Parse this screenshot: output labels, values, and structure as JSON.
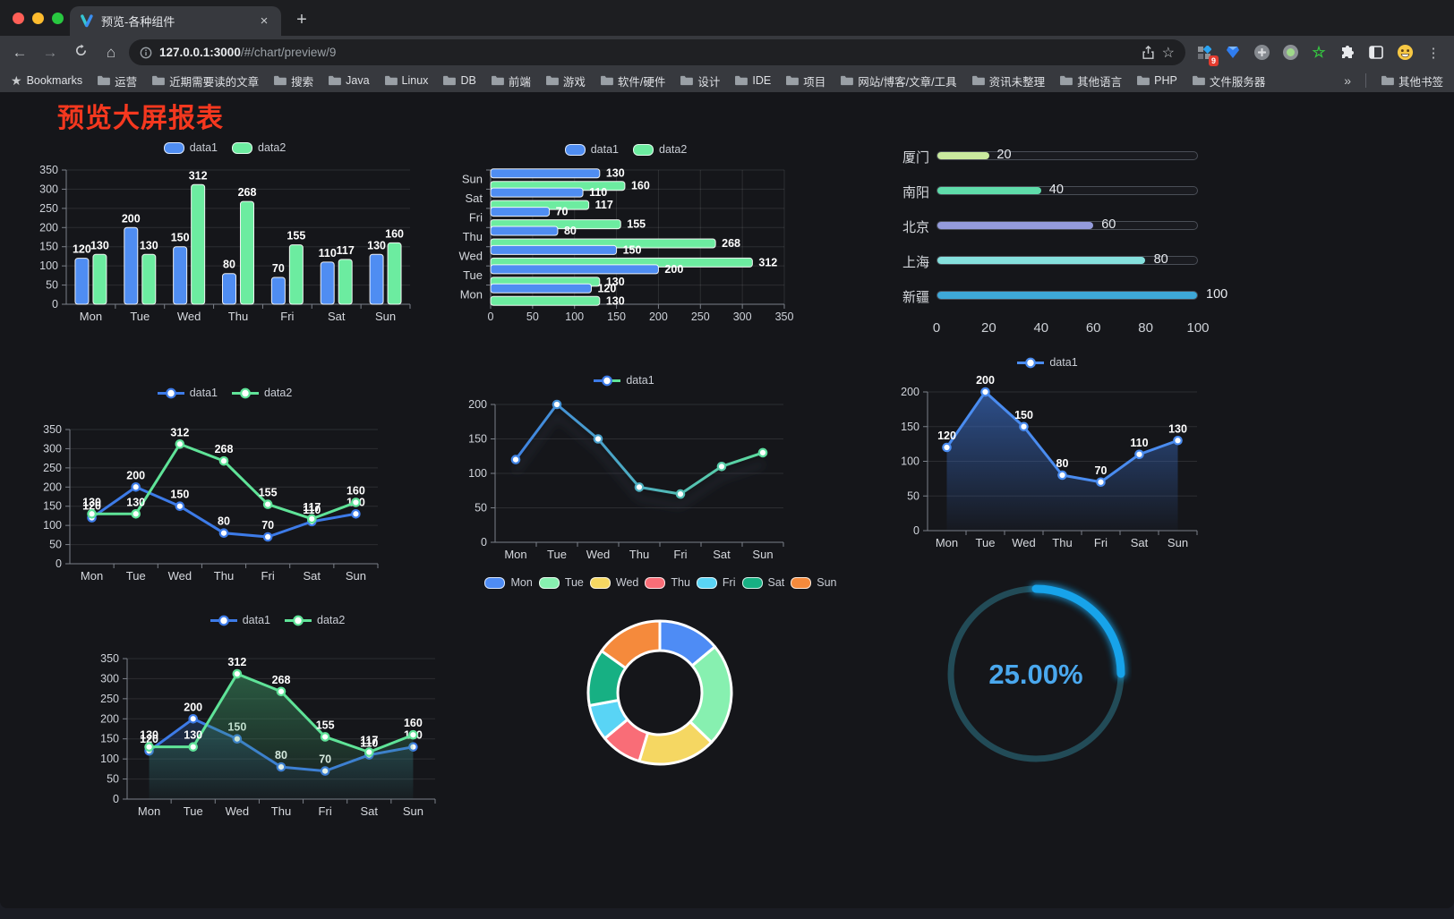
{
  "browser": {
    "tab_title": "预览-各种组件",
    "close_label": "×",
    "new_tab_label": "+",
    "url_host": "127.0.0.1:3000",
    "url_path": "/#/chart/preview/9",
    "extension_badge": "9"
  },
  "bookmarks": {
    "root_label": "Bookmarks",
    "folders": [
      "运营",
      "近期需要读的文章",
      "搜索",
      "Java",
      "Linux",
      "DB",
      "前端",
      "游戏",
      "软件/硬件",
      "设计",
      "IDE",
      "项目",
      "网站/博客/文章/工具",
      "资讯未整理",
      "其他语言",
      "PHP",
      "文件服务器"
    ],
    "overflow_label": "»",
    "other_label": "其他书签"
  },
  "page": {
    "title": "预览大屏报表"
  },
  "chart_data": [
    {
      "id": "bar-vertical",
      "type": "bar",
      "categories": [
        "Mon",
        "Tue",
        "Wed",
        "Thu",
        "Fri",
        "Sat",
        "Sun"
      ],
      "series": [
        {
          "name": "data1",
          "color": "#4f8df2",
          "values": [
            120,
            200,
            150,
            80,
            70,
            110,
            130
          ]
        },
        {
          "name": "data2",
          "color": "#6cecA0",
          "values": [
            130,
            130,
            312,
            268,
            155,
            117,
            160
          ]
        }
      ],
      "ylim": [
        0,
        350
      ],
      "yticks": [
        0,
        50,
        100,
        150,
        200,
        250,
        300,
        350
      ],
      "legend_position": "top",
      "grid": true,
      "value_labels": true
    },
    {
      "id": "bar-horizontal",
      "type": "bar-horizontal",
      "categories": [
        "Mon",
        "Tue",
        "Wed",
        "Thu",
        "Fri",
        "Sat",
        "Sun"
      ],
      "series": [
        {
          "name": "data1",
          "color": "#4f8df2",
          "values": [
            120,
            200,
            150,
            80,
            70,
            110,
            130
          ]
        },
        {
          "name": "data2",
          "color": "#6cecA0",
          "values": [
            130,
            130,
            312,
            268,
            155,
            117,
            160
          ]
        }
      ],
      "xlim": [
        0,
        350
      ],
      "xticks": [
        0,
        50,
        100,
        150,
        200,
        250,
        300,
        350
      ],
      "legend_position": "top",
      "grid": true,
      "value_labels": true
    },
    {
      "id": "city-progress",
      "type": "progress",
      "max": 100,
      "xticks": [
        0,
        20,
        40,
        60,
        80,
        100
      ],
      "items": [
        {
          "label": "厦门",
          "value": 20,
          "color": "#c9e99e"
        },
        {
          "label": "南阳",
          "value": 40,
          "color": "#5fdcaa"
        },
        {
          "label": "北京",
          "value": 60,
          "color": "#949bdc"
        },
        {
          "label": "上海",
          "value": 80,
          "color": "#85e0dd"
        },
        {
          "label": "新疆",
          "value": 100,
          "color": "#3ea8d8"
        }
      ]
    },
    {
      "id": "line-two",
      "type": "line",
      "categories": [
        "Mon",
        "Tue",
        "Wed",
        "Thu",
        "Fri",
        "Sat",
        "Sun"
      ],
      "series": [
        {
          "name": "data1",
          "color": "#3d7be8",
          "values": [
            120,
            200,
            150,
            80,
            70,
            110,
            130
          ]
        },
        {
          "name": "data2",
          "color": "#5fe398",
          "values": [
            130,
            130,
            312,
            268,
            155,
            117,
            160
          ]
        }
      ],
      "ylim": [
        0,
        350
      ],
      "yticks": [
        0,
        50,
        100,
        150,
        200,
        250,
        300,
        350
      ],
      "legend_position": "top",
      "grid": true,
      "value_labels": true
    },
    {
      "id": "line-gradient",
      "type": "line",
      "shadow": true,
      "categories": [
        "Mon",
        "Tue",
        "Wed",
        "Thu",
        "Fri",
        "Sat",
        "Sun"
      ],
      "series": [
        {
          "name": "data1",
          "color_gradient": [
            "#3d7be8",
            "#5fe398"
          ],
          "values": [
            120,
            200,
            150,
            80,
            70,
            110,
            130
          ]
        }
      ],
      "ylim": [
        0,
        200
      ],
      "yticks": [
        0,
        50,
        100,
        150,
        200
      ],
      "legend_position": "top",
      "grid": true,
      "value_labels": false
    },
    {
      "id": "area-single",
      "type": "line",
      "categories": [
        "Mon",
        "Tue",
        "Wed",
        "Thu",
        "Fri",
        "Sat",
        "Sun"
      ],
      "series": [
        {
          "name": "data1",
          "color": "#4a8cf0",
          "values": [
            120,
            200,
            150,
            80,
            70,
            110,
            130
          ],
          "area": true,
          "area_from": "rgba(58,110,200,0.65)",
          "area_to": "rgba(58,110,200,0.03)"
        }
      ],
      "ylim": [
        0,
        200
      ],
      "yticks": [
        0,
        50,
        100,
        150,
        200
      ],
      "legend_position": "top",
      "grid": true,
      "value_labels": true
    },
    {
      "id": "area-two",
      "type": "line",
      "categories": [
        "Mon",
        "Tue",
        "Wed",
        "Thu",
        "Fri",
        "Sat",
        "Sun"
      ],
      "series": [
        {
          "name": "data1",
          "color": "#3d7be8",
          "values": [
            120,
            200,
            150,
            80,
            70,
            110,
            130
          ],
          "area": true,
          "area_from": "rgba(47,95,170,0.55)",
          "area_to": "rgba(47,95,170,0.03)"
        },
        {
          "name": "data2",
          "color": "#5fe398",
          "values": [
            130,
            130,
            312,
            268,
            155,
            117,
            160
          ],
          "area": true,
          "area_from": "rgba(60,150,100,0.6)",
          "area_to": "rgba(60,150,100,0.04)"
        }
      ],
      "ylim": [
        0,
        350
      ],
      "yticks": [
        0,
        50,
        100,
        150,
        200,
        250,
        300,
        350
      ],
      "legend_position": "top",
      "grid": true,
      "value_labels": true
    },
    {
      "id": "donut",
      "type": "pie",
      "categories": [
        "Mon",
        "Tue",
        "Wed",
        "Thu",
        "Fri",
        "Sat",
        "Sun"
      ],
      "values": [
        120,
        200,
        150,
        80,
        70,
        110,
        130
      ],
      "colors": [
        "#4e8cf5",
        "#87f0b0",
        "#f5d762",
        "#f96d77",
        "#59d4f5",
        "#17b083",
        "#f58a3c"
      ],
      "legend_position": "top"
    },
    {
      "id": "gauge",
      "type": "gauge",
      "value": 25,
      "label": "25.00%",
      "track_color": "#224b57",
      "arc_color": "#17a3ea",
      "text_color": "#4aa8ee"
    }
  ]
}
